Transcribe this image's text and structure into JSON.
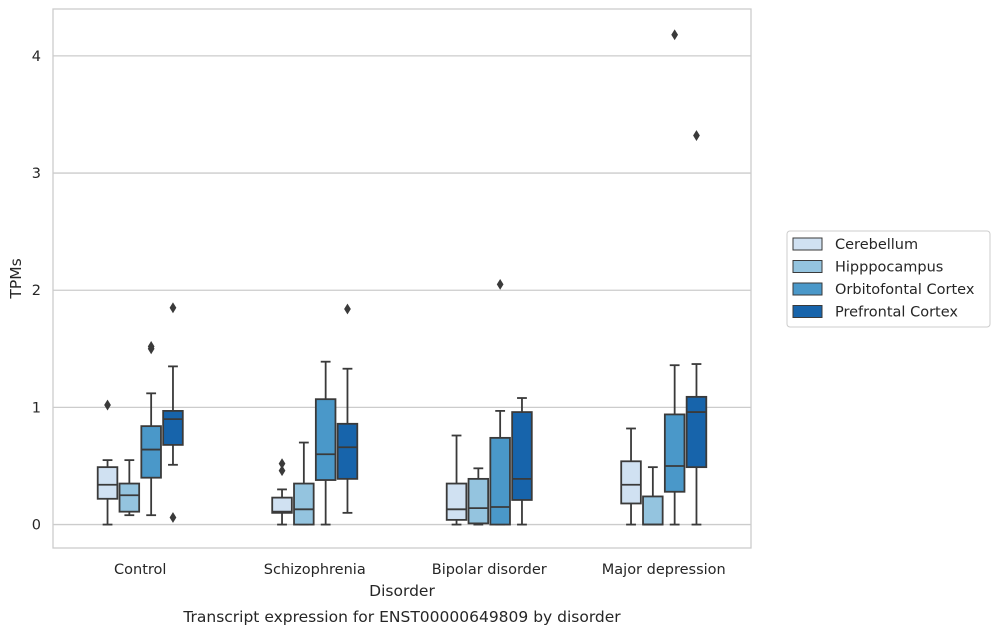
{
  "chart_data": {
    "type": "box",
    "title": "Transcript expression for ENST00000649809 by disorder",
    "xlabel": "Disorder",
    "ylabel": "TPMs",
    "ylim": [
      -0.2,
      4.4
    ],
    "yticks": [
      0,
      1,
      2,
      3,
      4
    ],
    "grid": "horizontal",
    "legend_position": "right",
    "categories": [
      "Control",
      "Schizophrenia",
      "Bipolar disorder",
      "Major depression"
    ],
    "series": [
      {
        "name": "Cerebellum",
        "color": "#d0e1f2",
        "boxes": [
          {
            "whislo": 0.0,
            "q1": 0.22,
            "med": 0.34,
            "q3": 0.49,
            "whishi": 0.55,
            "fliers": [
              1.02
            ]
          },
          {
            "whislo": 0.0,
            "q1": 0.1,
            "med": 0.11,
            "q3": 0.23,
            "whishi": 0.3,
            "fliers": [
              0.46,
              0.52
            ]
          },
          {
            "whislo": 0.0,
            "q1": 0.04,
            "med": 0.13,
            "q3": 0.35,
            "whishi": 0.76,
            "fliers": []
          },
          {
            "whislo": 0.0,
            "q1": 0.18,
            "med": 0.34,
            "q3": 0.54,
            "whishi": 0.82,
            "fliers": []
          }
        ]
      },
      {
        "name": "Hipppocampus",
        "color": "#94c4df",
        "boxes": [
          {
            "whislo": 0.08,
            "q1": 0.11,
            "med": 0.25,
            "q3": 0.35,
            "whishi": 0.55,
            "fliers": []
          },
          {
            "whislo": 0.0,
            "q1": 0.0,
            "med": 0.13,
            "q3": 0.35,
            "whishi": 0.7,
            "fliers": []
          },
          {
            "whislo": 0.0,
            "q1": 0.01,
            "med": 0.14,
            "q3": 0.39,
            "whishi": 0.48,
            "fliers": []
          },
          {
            "whislo": 0.0,
            "q1": 0.0,
            "med": 0.0,
            "q3": 0.24,
            "whishi": 0.49,
            "fliers": []
          }
        ]
      },
      {
        "name": "Orbitofontal Cortex",
        "color": "#4a98c9",
        "boxes": [
          {
            "whislo": 0.08,
            "q1": 0.4,
            "med": 0.64,
            "q3": 0.84,
            "whishi": 1.12,
            "fliers": [
              1.5,
              1.52
            ]
          },
          {
            "whislo": 0.0,
            "q1": 0.38,
            "med": 0.6,
            "q3": 1.07,
            "whishi": 1.39,
            "fliers": []
          },
          {
            "whislo": 0.0,
            "q1": 0.0,
            "med": 0.15,
            "q3": 0.74,
            "whishi": 0.97,
            "fliers": [
              2.05
            ]
          },
          {
            "whislo": 0.0,
            "q1": 0.28,
            "med": 0.5,
            "q3": 0.94,
            "whishi": 1.36,
            "fliers": [
              4.18
            ]
          }
        ]
      },
      {
        "name": "Prefrontal Cortex",
        "color": "#1764ab",
        "boxes": [
          {
            "whislo": 0.51,
            "q1": 0.68,
            "med": 0.9,
            "q3": 0.97,
            "whishi": 1.35,
            "fliers": [
              0.06,
              1.85
            ]
          },
          {
            "whislo": 0.1,
            "q1": 0.39,
            "med": 0.66,
            "q3": 0.86,
            "whishi": 1.33,
            "fliers": [
              1.84
            ]
          },
          {
            "whislo": 0.0,
            "q1": 0.21,
            "med": 0.39,
            "q3": 0.96,
            "whishi": 1.08,
            "fliers": []
          },
          {
            "whislo": 0.0,
            "q1": 0.49,
            "med": 0.96,
            "q3": 1.09,
            "whishi": 1.37,
            "fliers": [
              3.32
            ]
          }
        ]
      }
    ]
  }
}
